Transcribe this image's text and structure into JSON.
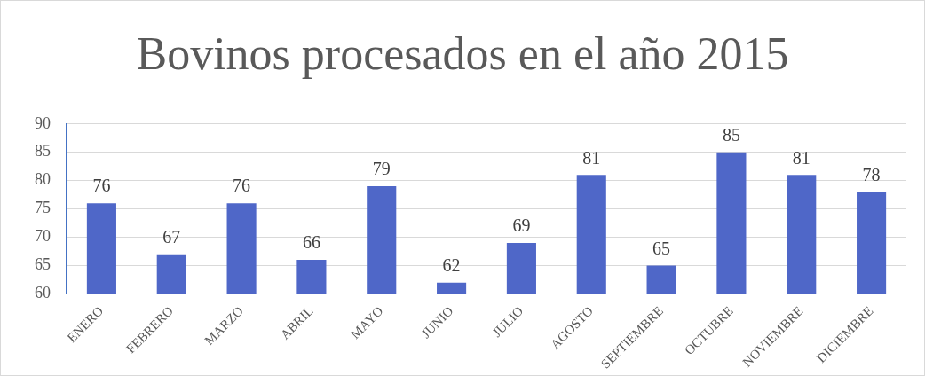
{
  "chart_data": {
    "type": "bar",
    "title": "Bovinos procesados en el año 2015",
    "categories": [
      "ENERO",
      "FEBRERO",
      "MARZO",
      "ABRIL",
      "MAYO",
      "JUNIO",
      "JULIO",
      "AGOSTO",
      "SEPTIEMBRE",
      "OCTUBRE",
      "NOVIEMBRE",
      "DICIEMBRE"
    ],
    "values": [
      76,
      67,
      76,
      66,
      79,
      62,
      69,
      81,
      65,
      85,
      81,
      78
    ],
    "color": "#4f67c8",
    "ylim": [
      60,
      90
    ],
    "yticks": [
      60,
      65,
      70,
      75,
      80,
      85,
      90
    ],
    "grid": "y",
    "data_labels": true,
    "legend": false
  }
}
